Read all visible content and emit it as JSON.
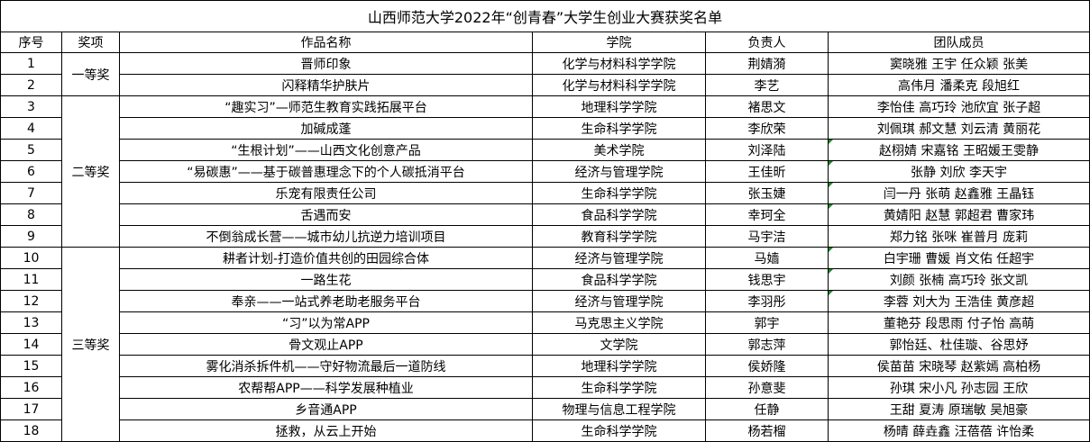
{
  "title": "山西师范大学2022年“创青春”大学生创业大赛获奖名单",
  "headers": [
    "序号",
    "奖项",
    "作品名称",
    "学院",
    "负责人",
    "团队成员"
  ],
  "awards": [
    {
      "label": "一等奖",
      "rows": 2
    },
    {
      "label": "二等奖",
      "rows": 7
    },
    {
      "label": "三等奖",
      "rows": 9
    }
  ],
  "rows": [
    {
      "no": "1",
      "project": "晋师印象",
      "college": "化学与材料科学学院",
      "leader": "荆婧漪",
      "members": "窦晓雅 王宇 任众颖 张美"
    },
    {
      "no": "2",
      "project": "闪释精华护肤片",
      "college": "化学与材料科学学院",
      "leader": "李艺",
      "members": "高伟月 潘柔克 段旭红"
    },
    {
      "no": "3",
      "project": "“趣实习”—师范生教育实践拓展平台",
      "college": "地理科学学院",
      "leader": "褚思文",
      "members": "李怡佳 高巧玲 池欣宜 张子超"
    },
    {
      "no": "4",
      "project": "加碱成蓬",
      "college": "生命科学学院",
      "leader": "李欣荣",
      "members": "刘佩琪 郝文慧 刘云清 黄丽花"
    },
    {
      "no": "5",
      "project": "“生根计划”——山西文化创意产品",
      "college": "美术学院",
      "leader": "刘泽陆",
      "members": "赵栩婧 宋嘉铭 王昭媛王雯静"
    },
    {
      "no": "6",
      "project": "“易碳惠”——基于碳普惠理念下的个人碳抵消平台",
      "college": "经济与管理学院",
      "leader": "王佳昕",
      "members": "张静 刘欣 李天宇"
    },
    {
      "no": "7",
      "project": "乐宠有限责任公司",
      "college": "生命科学学院",
      "leader": "张玉婕",
      "members": "闫一丹 张萌 赵鑫雅 王晶钰"
    },
    {
      "no": "8",
      "project": "舌遇而安",
      "college": "食品科学学院",
      "leader": "幸珂全",
      "members": "黄婧阳 赵慧 郭超君 曹家玮"
    },
    {
      "no": "9",
      "project": "不倒翁成长营——城市幼儿抗逆力培训项目",
      "college": "教育科学学院",
      "leader": "马宇洁",
      "members": "郑力铭 张咪 崔普月 庞莉"
    },
    {
      "no": "10",
      "project": "耕者计划-打造价值共创的田园综合体",
      "college": "经济与管理学院",
      "leader": "马嫱",
      "members": "白宇珊 曹媛 肖文佑 任超宇"
    },
    {
      "no": "11",
      "project": "一路生花",
      "college": "食品科学学院",
      "leader": "钱思宇",
      "members": "刘颜 张楠 高巧玲 张文凯"
    },
    {
      "no": "12",
      "project": "奉亲——一站式养老助老服务平台",
      "college": "经济与管理学院",
      "leader": "李羽彤",
      "members": "李蓉 刘大为 王浩佳 黄彦超"
    },
    {
      "no": "13",
      "project": "“习”以为常APP",
      "college": "马克思主义学院",
      "leader": "郭宇",
      "members": "董艳芬 段思雨 付子怡 高萌"
    },
    {
      "no": "14",
      "project": "骨文观止APP",
      "college": "文学院",
      "leader": "郭志萍",
      "members": "郭怡廷、杜佳璇、谷思妤"
    },
    {
      "no": "15",
      "project": "雾化消杀拆件机——守好物流最后一道防线",
      "college": "地理科学学院",
      "leader": "侯娇隆",
      "members": "侯苗苗 宋晓琴 赵紫嫣 高柏杨"
    },
    {
      "no": "16",
      "project": "农帮帮APP——科学发展种植业",
      "college": "生命科学学院",
      "leader": "孙意斐",
      "members": "孙琪 宋小凡 孙志园 王欣"
    },
    {
      "no": "17",
      "project": "乡音通APP",
      "college": "物理与信息工程学院",
      "leader": "任静",
      "members": "王甜 夏涛 原瑞敏 吴旭豪"
    },
    {
      "no": "18",
      "project": "拯救，从云上开始",
      "college": "生命科学学院",
      "leader": "杨若榴",
      "members": "杨晴  薛垚鑫 汪蓓蓓 许怡柔"
    }
  ],
  "marker_color": "#1a8a2a"
}
